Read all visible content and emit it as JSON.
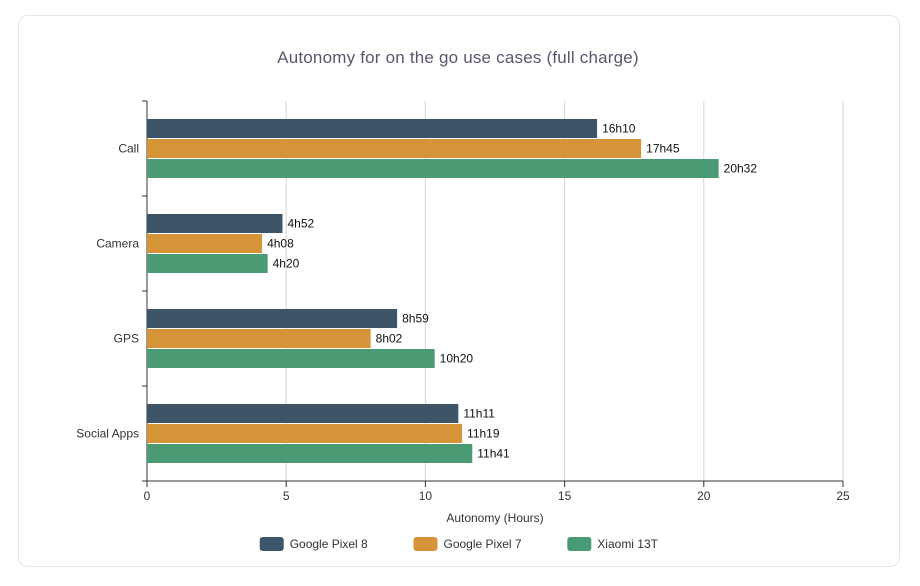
{
  "chart_data": {
    "type": "bar",
    "orientation": "horizontal",
    "title": "Autonomy for on the go use cases (full charge)",
    "xlabel": "Autonomy (Hours)",
    "ylabel": "",
    "xlim": [
      0,
      25
    ],
    "xticks": [
      0,
      5,
      10,
      15,
      20,
      25
    ],
    "grid": true,
    "legend_position": "bottom",
    "categories": [
      "Call",
      "Camera",
      "GPS",
      "Social Apps"
    ],
    "series": [
      {
        "name": "Google Pixel 8",
        "color": "#3e5467",
        "values": [
          16.1667,
          4.8667,
          8.9833,
          11.1833
        ],
        "labels": [
          "16h10",
          "4h52",
          "8h59",
          "11h11"
        ]
      },
      {
        "name": "Google Pixel 7",
        "color": "#d69438",
        "values": [
          17.75,
          4.1333,
          8.0333,
          11.3167
        ],
        "labels": [
          "17h45",
          "4h08",
          "8h02",
          "11h19"
        ]
      },
      {
        "name": "Xiaomi 13T",
        "color": "#4a9a74",
        "values": [
          20.5333,
          4.3333,
          10.3333,
          11.6833
        ],
        "labels": [
          "20h32",
          "4h20",
          "10h20",
          "11h41"
        ]
      }
    ]
  }
}
